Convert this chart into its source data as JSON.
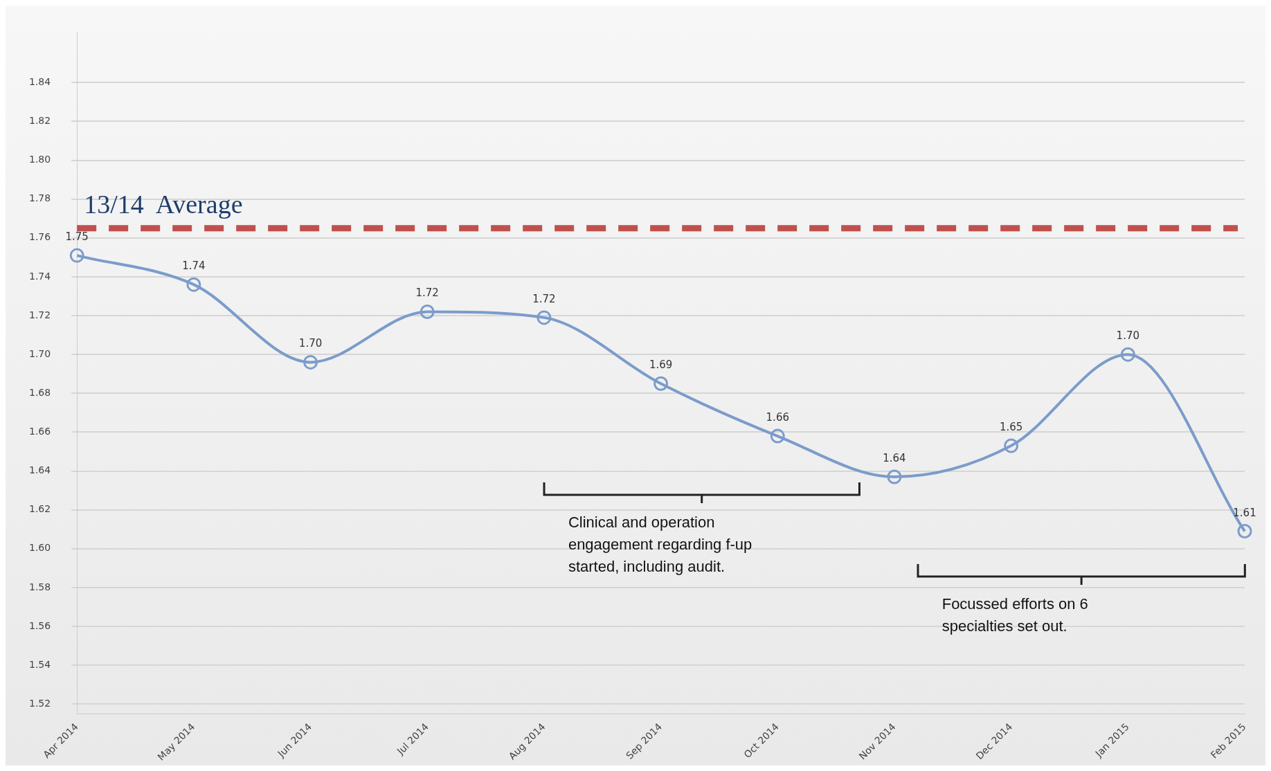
{
  "chart_data": {
    "type": "line",
    "categories": [
      "Apr 2014",
      "May 2014",
      "Jun 2014",
      "Jul 2014",
      "Aug 2014",
      "Sep 2014",
      "Oct 2014",
      "Nov 2014",
      "Dec 2014",
      "Jan 2015",
      "Feb 2015"
    ],
    "series": [
      {
        "color": "#7b9ccb",
        "values": [
          1.751,
          1.736,
          1.696,
          1.722,
          1.719,
          1.685,
          1.658,
          1.637,
          1.653,
          1.7,
          1.609
        ],
        "value_labels": [
          "1.75",
          "1.74",
          "1.70",
          "1.72",
          "1.72",
          "1.69",
          "1.66",
          "1.64",
          "1.65",
          "1.70",
          "1.61"
        ]
      }
    ],
    "ylim": [
      1.515,
      1.866
    ],
    "yticks": [
      1.52,
      1.54,
      1.56,
      1.58,
      {
        "value": 1.6,
        "label": "1.60"
      },
      1.62,
      1.64,
      1.66,
      1.68,
      {
        "value": 1.7,
        "label": "1.70"
      },
      1.72,
      1.74,
      1.76,
      1.78,
      {
        "value": 1.8,
        "label": "1.80"
      },
      1.82,
      1.84
    ],
    "grid": "y",
    "marker": "circle",
    "line_style": "solid",
    "legend": false,
    "ref_lines": [
      {
        "axis": "y",
        "value": 1.765,
        "label": "13/14  Average",
        "color": "#c0504d",
        "line_style": "dashed"
      }
    ],
    "annotations": [
      "Clinical and operation engagement regarding f-up started, including audit.",
      "Focussed efforts on 6 specialties set out."
    ]
  }
}
